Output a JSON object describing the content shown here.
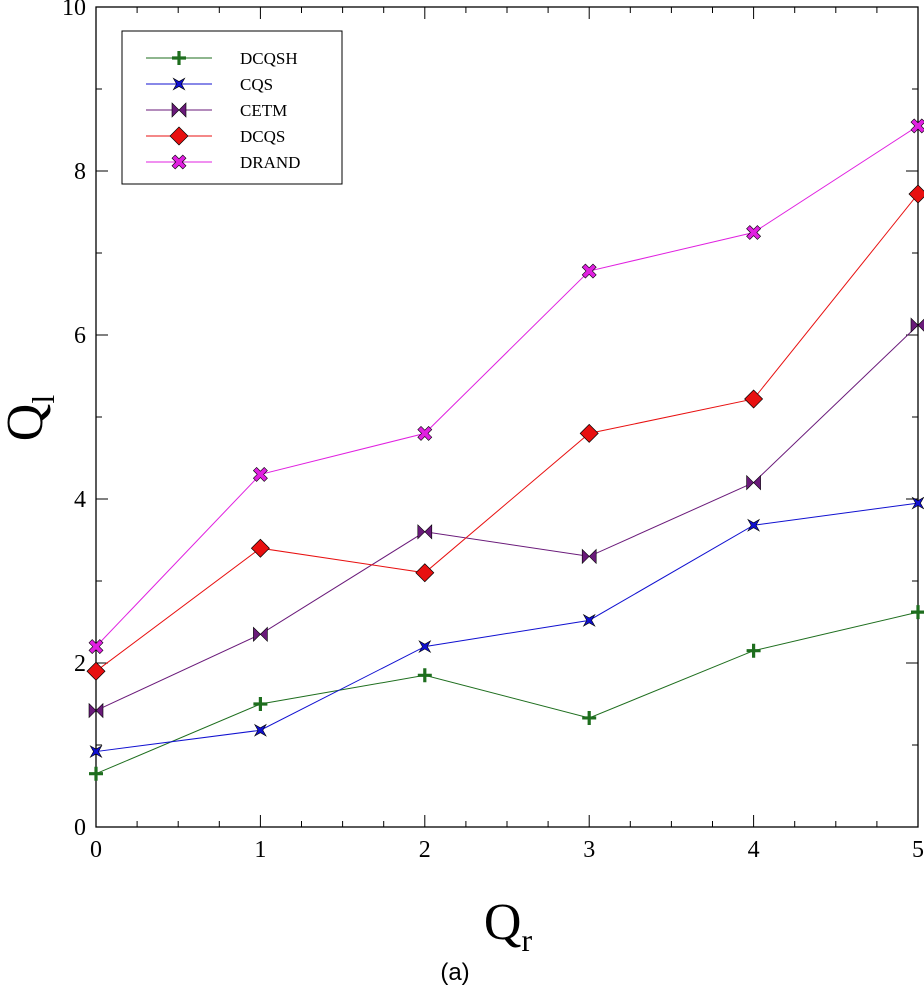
{
  "chart_data": {
    "type": "line",
    "caption": "(a)",
    "xlabel": "Q",
    "xlabel_sub": "r",
    "ylabel": "Q",
    "ylabel_sub": "l",
    "xlim": [
      0,
      5
    ],
    "ylim": [
      0,
      10
    ],
    "x_ticks": [
      "0",
      "1",
      "2",
      "3",
      "4",
      "5"
    ],
    "y_ticks": [
      "0",
      "2",
      "4",
      "6",
      "8",
      "10"
    ],
    "legend_position": "top-left",
    "x": [
      0,
      1,
      2,
      3,
      4,
      5
    ],
    "series": [
      {
        "name": "DCQSH",
        "color": "#1e6e1e",
        "marker": "plus",
        "values": [
          0.65,
          1.5,
          1.85,
          1.33,
          2.15,
          2.62
        ]
      },
      {
        "name": "CQS",
        "color": "#1010d0",
        "marker": "star",
        "values": [
          0.92,
          1.18,
          2.2,
          2.52,
          3.68,
          3.95
        ]
      },
      {
        "name": "CETM",
        "color": "#6a1a7a",
        "marker": "bowtie",
        "values": [
          1.42,
          2.35,
          3.6,
          3.3,
          4.2,
          6.12
        ]
      },
      {
        "name": "DCQS",
        "color": "#e81010",
        "marker": "diamond",
        "values": [
          1.9,
          3.4,
          3.1,
          4.8,
          5.22,
          7.72
        ]
      },
      {
        "name": "DRAND",
        "color": "#e020e0",
        "marker": "cross",
        "values": [
          2.2,
          4.3,
          4.8,
          6.78,
          7.25,
          8.55
        ]
      }
    ]
  }
}
